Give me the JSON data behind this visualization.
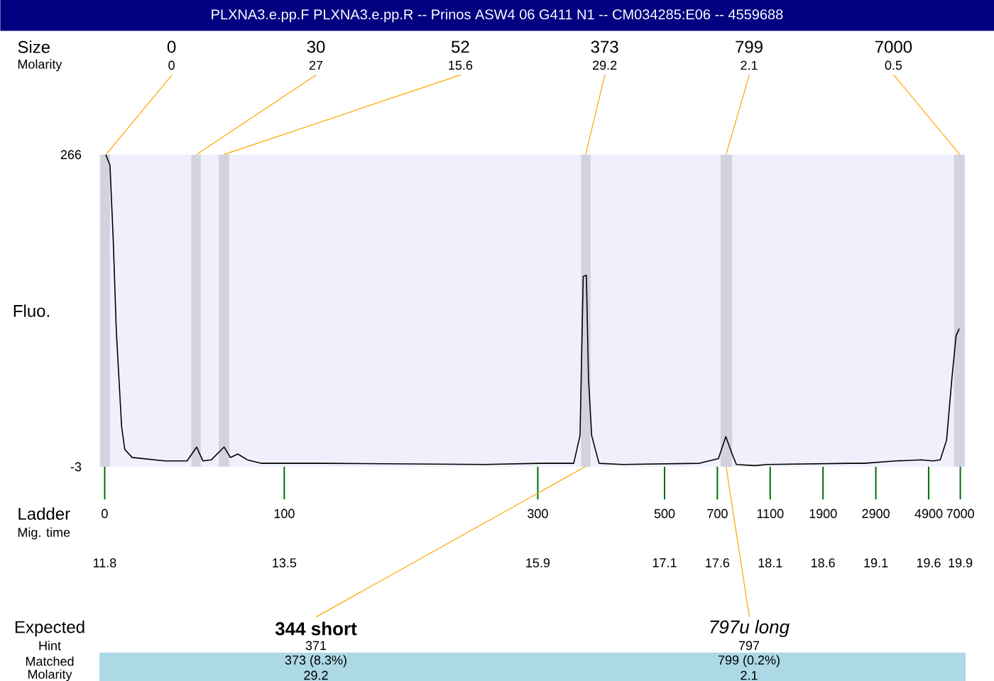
{
  "chart_data": {
    "type": "line",
    "title": "PLXNA3.e.pp.F  PLXNA3.e.pp.R -- Prinos ASW4 06 G411 N1 -- CM034285:E06 -- 4559688",
    "ylabel": "Fluo.",
    "x": [
      11.81,
      11.85,
      11.88,
      11.91,
      11.96,
      11.99,
      12.06,
      12.37,
      12.58,
      12.67,
      12.73,
      12.81,
      12.93,
      12.99,
      13.06,
      13.15,
      13.28,
      13.88,
      15.4,
      15.92,
      16.24,
      16.3,
      16.33,
      16.36,
      16.38,
      16.41,
      16.48,
      16.7,
      17.43,
      17.61,
      17.68,
      17.74,
      17.78,
      17.95,
      18.08,
      18.86,
      18.99,
      19.29,
      19.53,
      19.64,
      19.71,
      19.77,
      19.82,
      19.86,
      19.89
    ],
    "series": [
      {
        "color": "#000000",
        "values": [
          266,
          257,
          195,
          114,
          32,
          12,
          5,
          2,
          2,
          14,
          2,
          3,
          14,
          5,
          8,
          3,
          0,
          0,
          -1,
          0,
          0,
          24,
          161,
          162,
          73,
          24,
          0,
          -1,
          0,
          4,
          23,
          8,
          -1,
          -2,
          -1,
          0,
          0,
          2,
          3,
          2,
          3,
          20,
          73,
          110,
          116
        ]
      }
    ],
    "xlim": [
      11.75,
      19.95
    ],
    "ylim": [
      -3,
      266
    ],
    "xticks": [
      11.8,
      13.5,
      15.9,
      17.1,
      17.6,
      18.1,
      18.6,
      19.1,
      19.6,
      19.9
    ],
    "yticks": [
      -3,
      266
    ],
    "bands": [
      {
        "axis": "x",
        "from": 11.76,
        "to": 11.85,
        "color": "#d3d3e0"
      },
      {
        "axis": "x",
        "from": 12.62,
        "to": 12.71,
        "color": "#d3d3e0"
      },
      {
        "axis": "x",
        "from": 12.88,
        "to": 12.98,
        "color": "#d3d3e0"
      },
      {
        "axis": "x",
        "from": 16.31,
        "to": 16.4,
        "color": "#d3d3e0"
      },
      {
        "axis": "x",
        "from": 17.63,
        "to": 17.74,
        "color": "#d3d3e0"
      },
      {
        "axis": "x",
        "from": 19.84,
        "to": 19.94,
        "color": "#d3d3e0"
      }
    ],
    "annotations": [
      "Size",
      "Molarity",
      "Ladder",
      "Mig. time",
      "Expected",
      "Hint",
      "Matched",
      "Molarity",
      {
        "text": "0",
        "x": 11.81,
        "y": 266
      },
      {
        "text": "0",
        "x": 11.81,
        "y": 266
      },
      {
        "text": "30",
        "x": 12.67,
        "y": 266
      },
      {
        "text": "27",
        "x": 12.67,
        "y": 266
      },
      {
        "text": "52",
        "x": 12.93,
        "y": 266
      },
      {
        "text": "15.6",
        "x": 12.93,
        "y": 266
      },
      {
        "text": "373",
        "x": 16.35,
        "y": 266
      },
      {
        "text": "29.2",
        "x": 16.35,
        "y": 266
      },
      {
        "text": "799",
        "x": 17.68,
        "y": 266
      },
      {
        "text": "2.1",
        "x": 17.68,
        "y": 266
      },
      {
        "text": "7000",
        "x": 19.89,
        "y": 266
      },
      {
        "text": "0.5",
        "x": 19.89,
        "y": 266
      },
      {
        "text": "0",
        "x": 11.8,
        "y": -3
      },
      {
        "text": "100",
        "x": 13.5,
        "y": -3
      },
      {
        "text": "300",
        "x": 15.9,
        "y": -3
      },
      {
        "text": "500",
        "x": 17.1,
        "y": -3
      },
      {
        "text": "700",
        "x": 17.6,
        "y": -3
      },
      {
        "text": "1100",
        "x": 18.1,
        "y": -3
      },
      {
        "text": "1900",
        "x": 18.6,
        "y": -3
      },
      {
        "text": "2900",
        "x": 19.1,
        "y": -3
      },
      {
        "text": "4900",
        "x": 19.6,
        "y": -3
      },
      {
        "text": "7000",
        "x": 19.9,
        "y": -3
      },
      {
        "text": "**344 short**",
        "x": 16.35,
        "y": -3
      },
      "371",
      "373 (8.3%)",
      "29.2",
      {
        "text": "*797u long*",
        "x": 17.68,
        "y": -3
      },
      "797",
      "799 (0.2%)",
      "2.1"
    ]
  }
}
